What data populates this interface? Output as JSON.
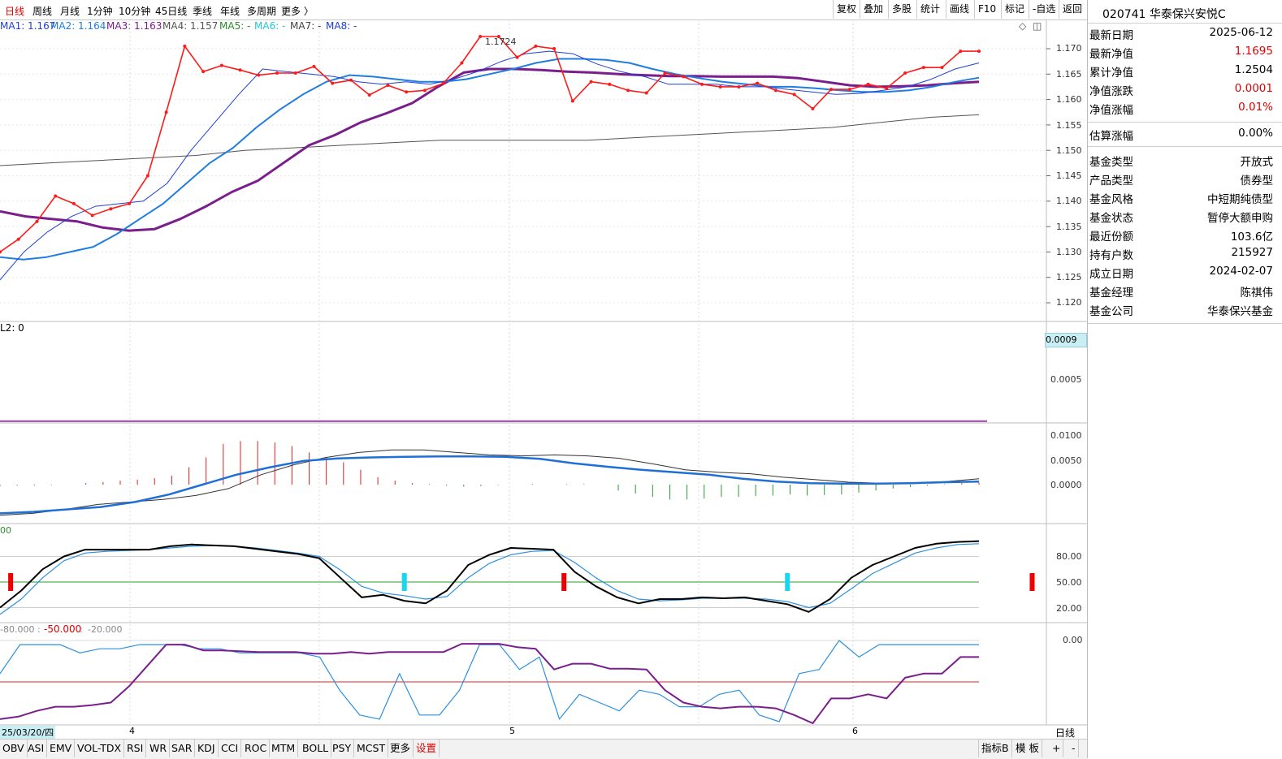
{
  "toolbar": {
    "periods": [
      "日线",
      "周线",
      "月线",
      "1分钟",
      "10分钟",
      "45日线",
      "季线",
      "年线",
      "多周期",
      "更多 〉"
    ],
    "tools": [
      "复权",
      "叠加",
      "多股",
      "统计",
      "画线",
      "F10",
      "标记",
      "-自选",
      "返回"
    ]
  },
  "ma_legend": {
    "ma1": "MA1: 1.167",
    "ma2": "MA2: 1.164",
    "ma3": "MA3: 1.163",
    "ma4": "MA4: 1.157",
    "ma5": "MA5: -",
    "ma6": "MA6: -",
    "ma7": "MA7: -",
    "ma8": "MA8: -"
  },
  "colors": {
    "price": "#ff1a1a",
    "ma1": "#1f3fd8",
    "ma2": "#1f7de0",
    "ma3": "#7a1e8c",
    "ma4": "#555555",
    "kdj_line": "#000000",
    "kdj_sig": "#2b90e0",
    "wr1": "#7a1e8c",
    "wr2": "#2b90e0"
  },
  "main_chart": {
    "peak_label": "1.1724",
    "y_ticks": [
      "1.170",
      "1.165",
      "1.160",
      "1.155",
      "1.150",
      "1.145",
      "1.140",
      "1.135",
      "1.130",
      "1.125",
      "1.120"
    ],
    "price": [
      1.13,
      1.1325,
      1.136,
      1.141,
      1.1395,
      1.1372,
      1.1385,
      1.1395,
      1.145,
      1.1575,
      1.1705,
      1.1655,
      1.1667,
      1.1658,
      1.1648,
      1.1652,
      1.1652,
      1.1665,
      1.1632,
      1.1638,
      1.1609,
      1.1628,
      1.1615,
      1.1618,
      1.1632,
      1.1672,
      1.1724,
      1.1724,
      1.1683,
      1.1705,
      1.17,
      1.1597,
      1.1635,
      1.163,
      1.1618,
      1.1613,
      1.1652,
      1.1645,
      1.163,
      1.1625,
      1.1625,
      1.1632,
      1.1618,
      1.161,
      1.1582,
      1.162,
      1.162,
      1.163,
      1.1622,
      1.1652,
      1.1663,
      1.1663,
      1.1695,
      1.1695
    ],
    "ma1": [
      1.1245,
      1.13,
      1.134,
      1.137,
      1.139,
      1.1395,
      1.14,
      1.1435,
      1.15,
      1.1555,
      1.161,
      1.166,
      1.1655,
      1.165,
      1.1645,
      1.1635,
      1.163,
      1.1635,
      1.163,
      1.164,
      1.1655,
      1.1675,
      1.169,
      1.1695,
      1.169,
      1.167,
      1.1655,
      1.1645,
      1.163,
      1.163,
      1.163,
      1.1625,
      1.1625,
      1.162,
      1.1615,
      1.161,
      1.1612,
      1.1618,
      1.1625,
      1.164,
      1.166,
      1.1672
    ],
    "ma2": [
      1.129,
      1.1285,
      1.129,
      1.13,
      1.131,
      1.1335,
      1.1365,
      1.1395,
      1.1435,
      1.1475,
      1.1505,
      1.1545,
      1.158,
      1.161,
      1.1635,
      1.1648,
      1.1645,
      1.164,
      1.1635,
      1.1635,
      1.164,
      1.165,
      1.166,
      1.1672,
      1.168,
      1.168,
      1.1678,
      1.1672,
      1.166,
      1.165,
      1.1642,
      1.1635,
      1.163,
      1.1625,
      1.1625,
      1.1622,
      1.1618,
      1.1615,
      1.1615,
      1.1618,
      1.1625,
      1.1635,
      1.1643
    ],
    "ma3": [
      1.138,
      1.137,
      1.1365,
      1.136,
      1.1348,
      1.1342,
      1.1345,
      1.1365,
      1.139,
      1.1418,
      1.144,
      1.1475,
      1.151,
      1.153,
      1.1555,
      1.1573,
      1.1593,
      1.1625,
      1.1653,
      1.166,
      1.166,
      1.1658,
      1.1655,
      1.1653,
      1.165,
      1.1648,
      1.1646,
      1.1646,
      1.1645,
      1.1645,
      1.1645,
      1.1642,
      1.1635,
      1.1628,
      1.1625,
      1.1626,
      1.1628,
      1.1632,
      1.1635
    ],
    "ma4": [
      1.147,
      1.1475,
      1.148,
      1.1485,
      1.149,
      1.15,
      1.1505,
      1.151,
      1.1515,
      1.152,
      1.152,
      1.152,
      1.152,
      1.1525,
      1.153,
      1.1535,
      1.154,
      1.1545,
      1.1555,
      1.1565,
      1.157
    ]
  },
  "panel_vol": {
    "label": "L2: 0",
    "highlight": "0.0009",
    "y_ticks": [
      "0.0005"
    ],
    "value": 0
  },
  "panel_macd": {
    "y_ticks": [
      "0.0100",
      "0.0050",
      "0.0000"
    ],
    "hist": [
      -0.0003,
      -0.0002,
      -0.0002,
      -0.0001,
      0.0,
      0.0003,
      0.0005,
      0.0008,
      0.001,
      0.0013,
      0.0018,
      0.0035,
      0.0055,
      0.0082,
      0.0088,
      0.0088,
      0.0085,
      0.0078,
      0.0065,
      0.0055,
      0.0045,
      0.003,
      0.0015,
      0.0008,
      0.0003,
      0.0001,
      -0.0002,
      -0.0004,
      -0.0003,
      -0.0001,
      0.0,
      0.0001,
      0.0,
      0.0001,
      0.0001,
      0.0,
      -0.0012,
      -0.0018,
      -0.0025,
      -0.003,
      -0.003,
      -0.0028,
      -0.0025,
      -0.0025,
      -0.0023,
      -0.0022,
      -0.002,
      -0.0022,
      -0.0021,
      -0.002,
      -0.0016,
      -0.0012,
      -0.0008,
      -0.0005,
      -0.0002,
      0.0001,
      0.0003,
      0.0004
    ],
    "diff": [
      -0.0062,
      -0.0058,
      -0.005,
      -0.004,
      -0.0035,
      -0.003,
      -0.0022,
      -0.0008,
      0.002,
      0.004,
      0.0055,
      0.0065,
      0.007,
      0.007,
      0.0065,
      0.006,
      0.0058,
      0.006,
      0.0058,
      0.0053,
      0.0042,
      0.003,
      0.0025,
      0.0022,
      0.0015,
      0.001,
      0.0005,
      0.0003,
      0.0004,
      0.0006,
      0.0012
    ],
    "dea": [
      -0.0058,
      -0.0055,
      -0.005,
      -0.0045,
      -0.0035,
      -0.002,
      0.0,
      0.002,
      0.0035,
      0.0048,
      0.0053,
      0.0055,
      0.0056,
      0.0057,
      0.0057,
      0.0056,
      0.0052,
      0.0043,
      0.0036,
      0.003,
      0.0025,
      0.002,
      0.0012,
      0.0006,
      0.0003,
      0.0002,
      0.0002,
      0.0003,
      0.0005,
      0.0006
    ]
  },
  "panel_kdj": {
    "label": "00",
    "y_ticks": [
      "80.00",
      "50.00",
      "20.00"
    ],
    "k": [
      20,
      40,
      65,
      80,
      88,
      88,
      88,
      88,
      92,
      94,
      93,
      92,
      89,
      86,
      83,
      78,
      55,
      32,
      35,
      28,
      25,
      40,
      70,
      82,
      90,
      89,
      88,
      62,
      45,
      32,
      25,
      30,
      30,
      32,
      31,
      32,
      28,
      24,
      15,
      30,
      55,
      70,
      80,
      90,
      95,
      97,
      98
    ],
    "d": [
      12,
      30,
      55,
      75,
      84,
      86,
      87,
      88,
      90,
      92,
      93,
      92,
      90,
      87,
      84,
      80,
      64,
      45,
      37,
      34,
      30,
      33,
      55,
      72,
      82,
      86,
      87,
      73,
      55,
      40,
      30,
      28,
      29,
      31,
      31,
      31,
      30,
      27,
      20,
      25,
      42,
      60,
      72,
      84,
      90,
      94,
      95
    ],
    "buy": [
      0.5,
      26.5,
      48.5
    ],
    "sell": [
      19,
      37
    ]
  },
  "panel_wr": {
    "label_a": "-80.000",
    "label_b": "-50.000",
    "label_c": "-20.000",
    "y_ticks": [
      "0.00"
    ],
    "wr1": [
      -95,
      -92,
      -85,
      -80,
      -80,
      -78,
      -75,
      -55,
      -30,
      -5,
      -5,
      -12,
      -12,
      -13,
      -14,
      -14,
      -14,
      -16,
      -16,
      -14,
      -16,
      -14,
      -14,
      -14,
      -14,
      -4,
      -4,
      -4,
      -8,
      -10,
      -35,
      -28,
      -28,
      -34,
      -34,
      -35,
      -60,
      -75,
      -80,
      -82,
      -80,
      -80,
      -82,
      -90,
      -100,
      -70,
      -70,
      -65,
      -70,
      -45,
      -40,
      -40,
      -20,
      -20
    ],
    "wr2": [
      -40,
      -5,
      -5,
      -5,
      -15,
      -10,
      -10,
      -5,
      -5,
      -5,
      -10,
      -10,
      -15,
      -15,
      -15,
      -15,
      -20,
      -60,
      -90,
      -95,
      -40,
      -90,
      -90,
      -60,
      -5,
      -5,
      -35,
      -20,
      -95,
      -65,
      -75,
      -85,
      -60,
      -65,
      -80,
      -80,
      -65,
      -60,
      -90,
      -98,
      -40,
      -35,
      0,
      -20,
      -5,
      -5,
      -5,
      -5,
      -5,
      -5
    ]
  },
  "x_axis": {
    "date_label": "25/03/20/四",
    "month_labels": [
      "4",
      "5",
      "6"
    ],
    "period_label": "日线"
  },
  "bottom_tabs": [
    "OBV",
    "ASI",
    "EMV",
    "VOL-TDX",
    "RSI",
    "WR",
    "SAR",
    "KDJ",
    "CCI",
    "ROC",
    "MTM",
    "BOLL",
    "PSY",
    "MCST",
    "更多",
    "设置"
  ],
  "bottom_right": {
    "indicator": "指标B",
    "template": "模 板",
    "plus": "+",
    "minus": "-"
  },
  "fund_info": {
    "code_name": "020741 华泰保兴安悦C",
    "rows": [
      {
        "k": "最新日期",
        "v": "2025-06-12",
        "color": "#000000"
      },
      {
        "k": "最新净值",
        "v": "1.1695",
        "color": "#e00000"
      },
      {
        "k": "累计净值",
        "v": "1.2504",
        "color": "#000000"
      },
      {
        "k": "净值涨跌",
        "v": "0.0001",
        "color": "#e00000"
      },
      {
        "k": "净值涨幅",
        "v": "0.01%",
        "color": "#e00000"
      },
      {
        "k": "估算涨幅",
        "v": "0.00%",
        "color": "#000000"
      },
      {
        "k": "基金类型",
        "v": "开放式",
        "color": "#000000"
      },
      {
        "k": "产品类型",
        "v": "债券型",
        "color": "#000000"
      },
      {
        "k": "基金风格",
        "v": "中短期纯债型",
        "color": "#000000"
      },
      {
        "k": "基金状态",
        "v": "暂停大额申购",
        "color": "#000000"
      },
      {
        "k": "最近份额",
        "v": "103.6亿",
        "color": "#000000"
      },
      {
        "k": "持有户数",
        "v": "215927",
        "color": "#000000"
      },
      {
        "k": "成立日期",
        "v": "2024-02-07",
        "color": "#000000"
      },
      {
        "k": "基金经理",
        "v": "陈祺伟",
        "color": "#000000"
      },
      {
        "k": "基金公司",
        "v": "华泰保兴基金",
        "color": "#000000"
      }
    ]
  }
}
